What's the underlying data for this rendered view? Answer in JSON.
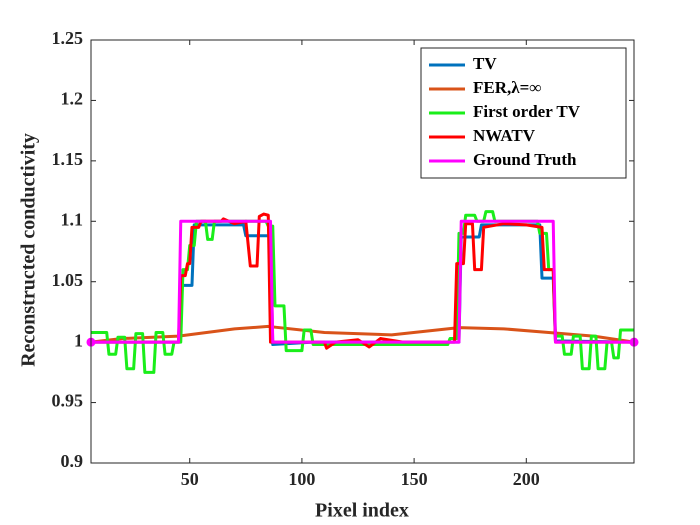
{
  "chart_data": {
    "type": "line",
    "xlabel": "Pixel index",
    "ylabel": "Reconstructed conductivity",
    "xlim": [
      6,
      248
    ],
    "ylim": [
      0.9,
      1.25
    ],
    "xticks": [
      50,
      100,
      150,
      200
    ],
    "yticks": [
      0.9,
      0.95,
      1,
      1.05,
      1.1,
      1.15,
      1.2,
      1.25
    ],
    "grid": false,
    "legend": "upper right",
    "series": [
      {
        "name": "TV",
        "color": "#0072bd",
        "x": [
          6,
          45,
          46,
          51,
          52,
          74,
          75,
          86,
          87,
          105,
          170,
          171,
          179,
          180,
          206,
          207,
          212,
          213,
          248
        ],
        "values": [
          1.0,
          1.0,
          1.047,
          1.047,
          1.097,
          1.097,
          1.088,
          1.088,
          0.998,
          1.0,
          1.0,
          1.087,
          1.087,
          1.097,
          1.097,
          1.053,
          1.053,
          1.001,
          1.0
        ]
      },
      {
        "name": "FER,λ=∞",
        "color": "#d95319",
        "x": [
          6,
          20,
          45,
          70,
          85,
          110,
          140,
          170,
          190,
          210,
          230,
          248
        ],
        "values": [
          1.0,
          1.003,
          1.005,
          1.011,
          1.013,
          1.008,
          1.006,
          1.012,
          1.011,
          1.008,
          1.005,
          1.0
        ]
      },
      {
        "name": "First order TV",
        "color": "#1aee1a",
        "x": [
          6,
          13,
          14,
          17,
          18,
          21,
          22,
          25,
          26,
          29,
          30,
          34,
          35,
          38,
          39,
          42,
          43,
          46,
          47,
          49,
          50,
          52,
          53,
          57,
          58,
          60,
          61,
          84,
          85,
          87,
          88,
          92,
          93,
          100,
          101,
          104,
          105,
          165,
          166,
          169,
          170,
          172,
          173,
          177,
          178,
          181,
          182,
          185,
          186,
          205,
          206,
          209,
          210,
          212,
          213,
          216,
          217,
          220,
          221,
          224,
          225,
          228,
          229,
          231,
          232,
          235,
          236,
          238,
          239,
          241,
          242,
          248
        ],
        "values": [
          1.008,
          1.008,
          0.99,
          0.99,
          1.004,
          1.004,
          0.978,
          0.978,
          1.007,
          1.007,
          0.975,
          0.975,
          1.008,
          1.008,
          0.99,
          0.99,
          1.0,
          1.0,
          1.06,
          1.06,
          1.08,
          1.08,
          1.1,
          1.1,
          1.085,
          1.085,
          1.1,
          1.1,
          1.096,
          1.096,
          1.03,
          1.03,
          0.993,
          0.993,
          1.01,
          1.01,
          0.998,
          0.998,
          1.003,
          1.003,
          1.09,
          1.09,
          1.105,
          1.105,
          1.1,
          1.1,
          1.108,
          1.108,
          1.1,
          1.1,
          1.09,
          1.09,
          1.06,
          1.06,
          1.005,
          1.005,
          0.99,
          0.99,
          1.005,
          1.005,
          0.978,
          0.978,
          1.005,
          1.005,
          0.978,
          0.978,
          1.0,
          1.0,
          0.987,
          0.987,
          1.01,
          1.01
        ]
      },
      {
        "name": "NWATV",
        "color": "#ff0000",
        "x": [
          6,
          45,
          46,
          48,
          49,
          50,
          51,
          54,
          55,
          64,
          65,
          70,
          75,
          77,
          80,
          81,
          83,
          85,
          86,
          110,
          111,
          115,
          125,
          130,
          135,
          145,
          168,
          169,
          172,
          173,
          176,
          177,
          180,
          181,
          190,
          200,
          207,
          208,
          212,
          213,
          248
        ],
        "values": [
          1.0,
          1.0,
          1.055,
          1.055,
          1.065,
          1.065,
          1.095,
          1.095,
          1.1,
          1.1,
          1.102,
          1.098,
          1.1,
          1.063,
          1.063,
          1.104,
          1.106,
          1.105,
          1.0,
          1.0,
          0.995,
          1.0,
          1.002,
          0.996,
          1.003,
          1.0,
          1.0,
          1.065,
          1.065,
          1.098,
          1.098,
          1.06,
          1.06,
          1.095,
          1.098,
          1.097,
          1.095,
          1.06,
          1.06,
          1.0,
          1.0
        ]
      },
      {
        "name": "Ground Truth",
        "color": "#ff00ff",
        "marker": "o",
        "x": [
          6,
          45,
          46,
          86,
          87,
          170,
          171,
          212,
          213,
          248
        ],
        "values": [
          1.0,
          1.0,
          1.1,
          1.1,
          1.0,
          1.0,
          1.1,
          1.1,
          1.0,
          1.0
        ]
      }
    ]
  }
}
